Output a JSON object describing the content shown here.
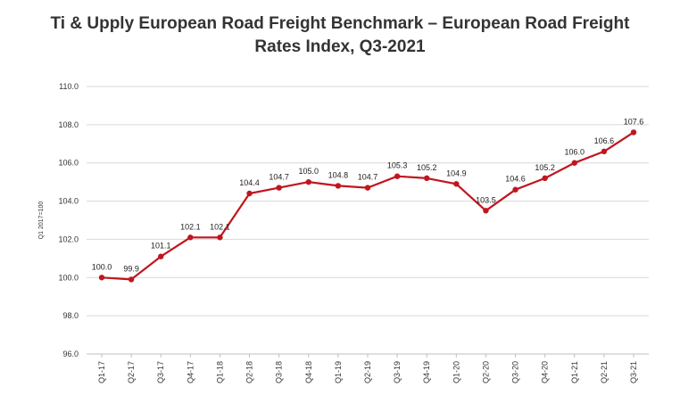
{
  "chart_data": {
    "type": "line",
    "title_lines": [
      "Ti & Upply European Road Freight Benchmark – European Road Freight",
      "Rates Index, Q3-2021"
    ],
    "xlabel": "",
    "ylabel": "Q1 2017=100",
    "ylim": [
      96.0,
      110.0
    ],
    "yticks": [
      "96.0",
      "98.0",
      "100.0",
      "102.0",
      "104.0",
      "106.0",
      "108.0",
      "110.0"
    ],
    "grid": "horizontal",
    "line_color": "#c0161e",
    "grid_color": "#d9d9d9",
    "categories": [
      "Q1-17",
      "Q2-17",
      "Q3-17",
      "Q4-17",
      "Q1-18",
      "Q2-18",
      "Q3-18",
      "Q4-18",
      "Q1-19",
      "Q2-19",
      "Q3-19",
      "Q4-19",
      "Q1-20",
      "Q2-20",
      "Q3-20",
      "Q4-20",
      "Q1-21",
      "Q2-21",
      "Q3-21"
    ],
    "values": [
      100.0,
      99.9,
      101.1,
      102.1,
      102.1,
      104.4,
      104.7,
      105.0,
      104.8,
      104.7,
      105.3,
      105.2,
      104.9,
      103.5,
      104.6,
      105.2,
      106.0,
      106.6,
      107.6
    ],
    "data_labels": [
      "100.0",
      "99.9",
      "101.1",
      "102.1",
      "102.1",
      "104.4",
      "104.7",
      "105.0",
      "104.8",
      "104.7",
      "105.3",
      "105.2",
      "104.9",
      "103.5",
      "104.6",
      "105.2",
      "106.0",
      "106.6",
      "107.6"
    ]
  }
}
